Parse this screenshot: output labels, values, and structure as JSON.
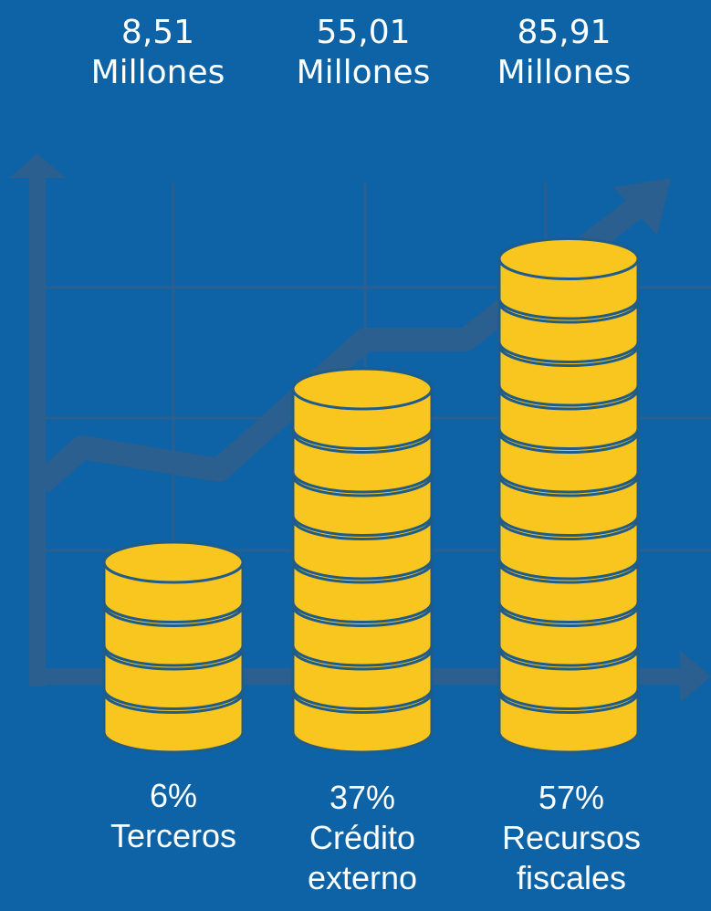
{
  "colors": {
    "background": "#0d63a5",
    "grid": "#2a5f8f",
    "coin_fill": "#f9c61f",
    "coin_stroke": "#1f5c8a",
    "text": "#ffffff"
  },
  "chart_data": {
    "type": "bar",
    "title": "",
    "categories": [
      "Terceros",
      "Crédito externo",
      "Recursos fiscales"
    ],
    "values": [
      8.51,
      55.01,
      85.91
    ],
    "percentages": [
      6,
      37,
      57
    ],
    "coin_counts": [
      4,
      8,
      11
    ],
    "grid": true,
    "legend": "none"
  },
  "columns": [
    {
      "amount": "8,51",
      "unit": "Millones",
      "percent": "6%",
      "label_line1": "Terceros",
      "label_line2": ""
    },
    {
      "amount": "55,01",
      "unit": "Millones",
      "percent": "37%",
      "label_line1": "Crédito",
      "label_line2": "externo"
    },
    {
      "amount": "85,91",
      "unit": "Millones",
      "percent": "57%",
      "label_line1": "Recursos",
      "label_line2": "fiscales"
    }
  ]
}
